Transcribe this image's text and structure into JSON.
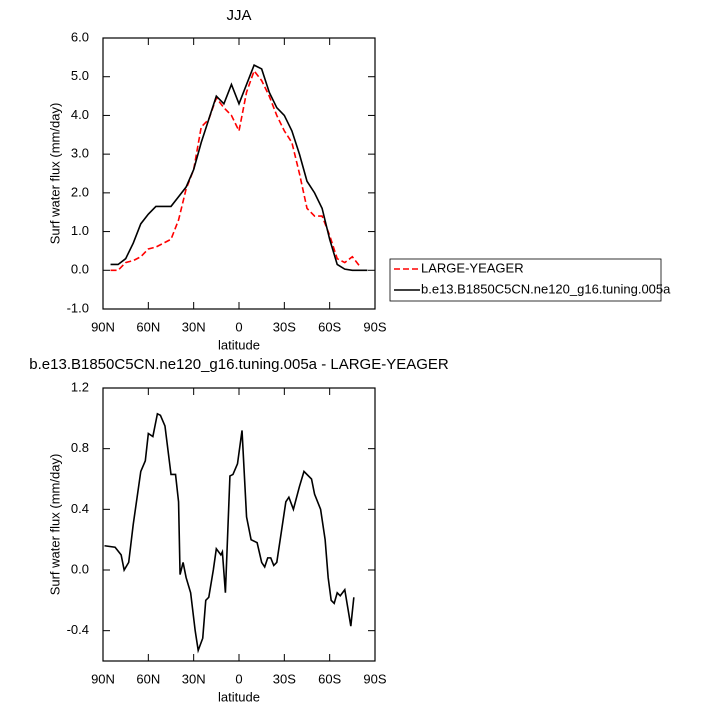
{
  "chart_data": [
    {
      "type": "line",
      "title": "JJA",
      "xlabel": "latitude",
      "ylabel": "Surf water flux (mm/day)",
      "x": [
        85,
        80,
        75,
        70,
        65,
        60,
        55,
        50,
        45,
        40,
        35,
        30,
        25,
        20,
        15,
        10,
        5,
        0,
        -5,
        -10,
        -15,
        -20,
        -25,
        -30,
        -35,
        -40,
        -45,
        -50,
        -55,
        -60,
        -65,
        -70,
        -75,
        -80,
        -85
      ],
      "series": [
        {
          "name": "LARGE-YEAGER",
          "color": "#ff0000",
          "linestyle": "dashed",
          "values": [
            0,
            0,
            0.2,
            0.25,
            0.35,
            0.55,
            0.6,
            0.7,
            0.8,
            1.3,
            2.1,
            2.6,
            3.7,
            3.9,
            4.45,
            4.2,
            4.0,
            3.6,
            4.6,
            5.15,
            4.9,
            4.5,
            4.0,
            3.6,
            3.3,
            2.5,
            1.6,
            1.4,
            1.4,
            0.9,
            0.3,
            0.2,
            0.35,
            0.1,
            null
          ]
        },
        {
          "name": "b.e13.B1850C5CN.ne120_g16.tuning.005a",
          "color": "#000000",
          "linestyle": "solid",
          "values": [
            0.15,
            0.15,
            0.3,
            0.7,
            1.2,
            1.45,
            1.65,
            1.65,
            1.65,
            1.9,
            2.15,
            2.6,
            3.3,
            3.9,
            4.5,
            4.3,
            4.8,
            4.3,
            4.8,
            5.3,
            5.2,
            4.6,
            4.2,
            4.0,
            3.6,
            3.0,
            2.3,
            2.0,
            1.6,
            0.8,
            0.15,
            0.03,
            0,
            0,
            0
          ]
        }
      ],
      "xlim": [
        90,
        -90
      ],
      "xticks": [
        {
          "value": 90,
          "label": "90N"
        },
        {
          "value": 60,
          "label": "60N"
        },
        {
          "value": 30,
          "label": "30N"
        },
        0,
        {
          "value": -30,
          "label": "30S"
        },
        {
          "value": -60,
          "label": "60S"
        },
        {
          "value": -90,
          "label": "90S"
        }
      ],
      "ylim": [
        -1,
        6
      ],
      "yticks": [
        {
          "value": -1,
          "label": "-1.0"
        },
        {
          "value": 0,
          "label": "0.0"
        },
        {
          "value": 1,
          "label": "1.0"
        },
        {
          "value": 2,
          "label": "2.0"
        },
        {
          "value": 3,
          "label": "3.0"
        },
        {
          "value": 4,
          "label": "4.0"
        },
        {
          "value": 5,
          "label": "5.0"
        },
        {
          "value": 6,
          "label": "6.0"
        }
      ],
      "legend": "right"
    },
    {
      "type": "line",
      "title": "b.e13.B1850C5CN.ne120_g16.tuning.005a - LARGE-YEAGER",
      "xlabel": "latitude",
      "ylabel": "Surf water flux (mm/day)",
      "x": [
        89,
        82,
        78,
        76,
        73,
        70,
        65,
        62,
        60,
        57,
        54,
        52,
        49,
        45,
        42,
        40,
        39,
        37,
        35,
        32,
        29,
        27,
        24,
        22,
        20,
        17,
        15,
        12,
        11,
        9,
        6,
        4,
        1,
        -2,
        -5,
        -8,
        -12,
        -15,
        -17,
        -19,
        -21,
        -23,
        -25,
        -28,
        -31,
        -33,
        -36,
        -40,
        -43,
        -48,
        -50,
        -54,
        -57,
        -59,
        -61,
        -63,
        -65,
        -67,
        -70,
        -72,
        -74,
        -76
      ],
      "series": [
        {
          "color": "#000000",
          "linestyle": "solid",
          "values": [
            0.16,
            0.15,
            0.1,
            0.0,
            0.05,
            0.3,
            0.65,
            0.72,
            0.9,
            0.88,
            1.03,
            1.02,
            0.95,
            0.63,
            0.63,
            0.45,
            -0.03,
            0.05,
            -0.05,
            -0.15,
            -0.4,
            -0.53,
            -0.45,
            -0.2,
            -0.18,
            0.0,
            0.14,
            0.1,
            0.12,
            -0.15,
            0.62,
            0.63,
            0.7,
            0.92,
            0.35,
            0.2,
            0.18,
            0.05,
            0.02,
            0.08,
            0.08,
            0.03,
            0.05,
            0.25,
            0.45,
            0.48,
            0.4,
            0.55,
            0.65,
            0.6,
            0.5,
            0.4,
            0.2,
            -0.05,
            -0.2,
            -0.22,
            -0.15,
            -0.17,
            -0.13,
            -0.25,
            -0.37,
            -0.18
          ]
        }
      ],
      "xlim": [
        90,
        -90
      ],
      "xticks": [
        {
          "value": 90,
          "label": "90N"
        },
        {
          "value": 60,
          "label": "60N"
        },
        {
          "value": 30,
          "label": "30N"
        },
        0,
        {
          "value": -30,
          "label": "30S"
        },
        {
          "value": -60,
          "label": "60S"
        },
        {
          "value": -90,
          "label": "90S"
        }
      ],
      "ylim": [
        -0.6,
        1.2
      ],
      "yticks": [
        -0.4,
        {
          "value": 0,
          "label": "0.0"
        },
        0.4,
        0.8,
        1.2
      ]
    }
  ]
}
